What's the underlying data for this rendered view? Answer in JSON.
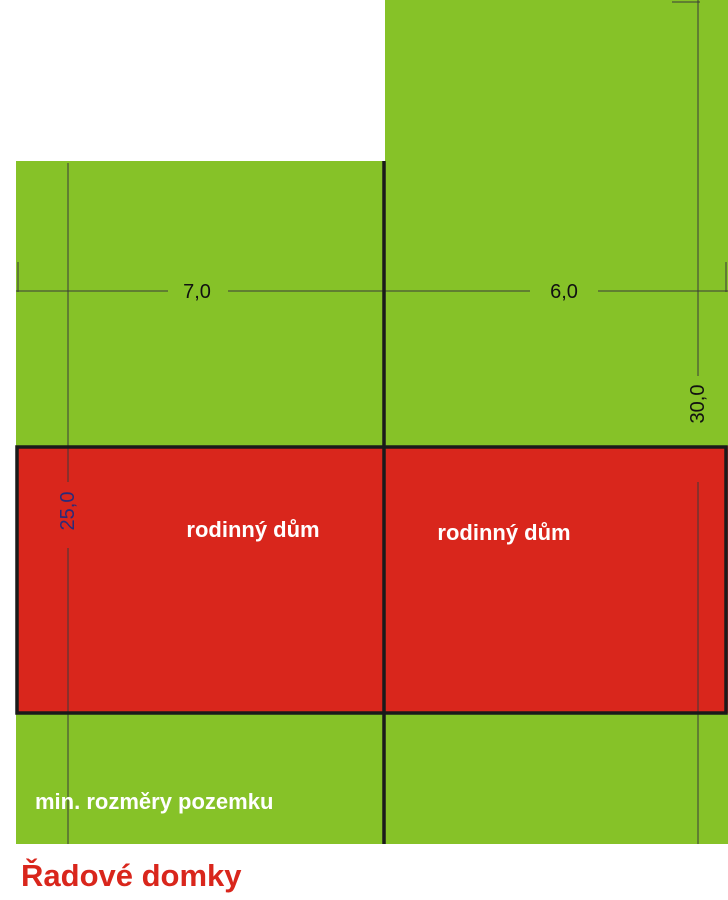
{
  "colors": {
    "plot": "#86c228",
    "house": "#d9261c",
    "outline": "#1a1a1a",
    "dimension_line": "#3a3a3a",
    "title": "#d9261c",
    "white_text": "#ffffff",
    "dim_text_dark": "#111111",
    "dim_text_blue": "#2a2a7a"
  },
  "plots": [
    {
      "width_label": "7,0",
      "house_label": "rodinný dům"
    },
    {
      "width_label": "6,0",
      "house_label": "rodinný dům"
    }
  ],
  "dimensions": {
    "left_plot_depth": "25,0",
    "right_plot_depth": "30,0"
  },
  "note": "min. rozměry pozemku",
  "title": "Řadové domky"
}
